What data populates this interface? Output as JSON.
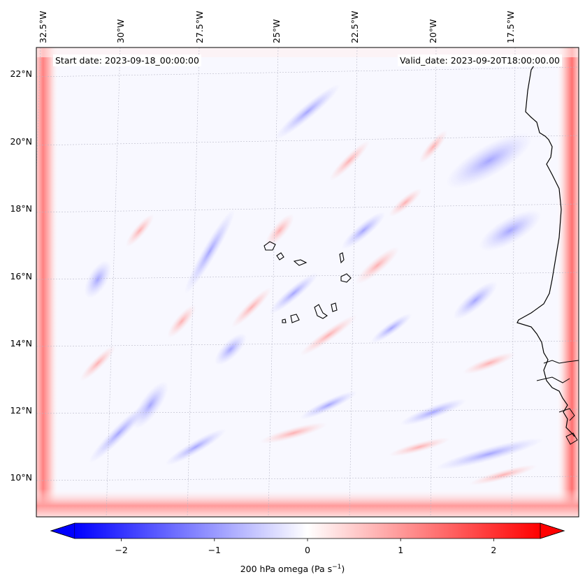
{
  "header": {
    "start_date": "Start date: 2023-09-18_00:00:00",
    "valid_date": "Valid_date: 2023-09-20T18:00:00.00"
  },
  "map": {
    "lon_labels": [
      "32.5°W",
      "30°W",
      "27.5°W",
      "25°W",
      "22.5°W",
      "20°W",
      "17.5°W"
    ],
    "lat_labels": [
      "22°N",
      "20°N",
      "18°N",
      "16°N",
      "14°N",
      "12°N",
      "10°N"
    ],
    "lon_range": [
      -33,
      -16
    ],
    "lat_range": [
      9,
      22.8
    ],
    "field": "200 hPa omega",
    "features": [
      "Cabo Verde islands",
      "West African coastline",
      "gridlines"
    ]
  },
  "colorbar": {
    "label_main": "200 hPa omega (Pa s",
    "label_exp": "−1",
    "label_close": ")",
    "ticks": [
      "−2",
      "−1",
      "0",
      "1",
      "2"
    ],
    "tick_values": [
      -2,
      -1,
      0,
      1,
      2
    ],
    "range": [
      -2.5,
      2.5
    ],
    "colormap": "bwr",
    "extend": "both",
    "low_color": "#0000ff",
    "mid_color": "#ffffff",
    "high_color": "#ff0000"
  }
}
